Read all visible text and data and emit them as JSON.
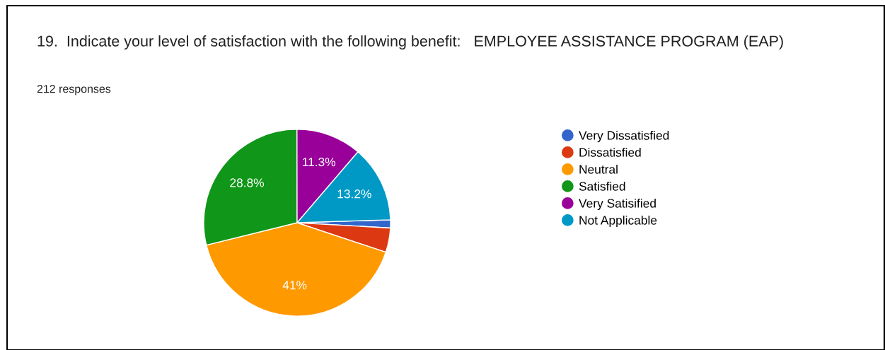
{
  "chart_data": {
    "type": "pie",
    "title": "19.  Indicate your level of satisfaction with the following benefit:   EMPLOYEE ASSISTANCE PROGRAM (EAP)",
    "subtitle": "212 responses",
    "categories": [
      "Very Dissatisfied",
      "Dissatisfied",
      "Neutral",
      "Satisfied",
      "Very Satisified",
      "Not Applicable"
    ],
    "values": [
      1.4,
      4.2,
      41,
      28.8,
      11.3,
      13.2
    ],
    "colors": [
      "#3366cc",
      "#dc3912",
      "#ff9900",
      "#109618",
      "#990099",
      "#0099c6"
    ],
    "value_labels": [
      null,
      null,
      "41%",
      "28.8%",
      "11.3%",
      "13.2%"
    ],
    "legend": "right"
  }
}
